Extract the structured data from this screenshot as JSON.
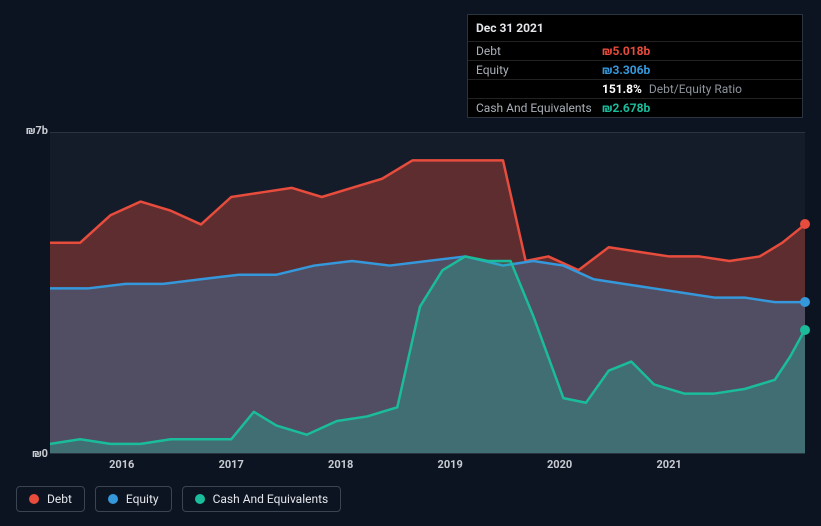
{
  "tooltip": {
    "date": "Dec 31 2021",
    "rows": [
      {
        "label": "Debt",
        "value": "₪5.018b",
        "color": "#e74c3c"
      },
      {
        "label": "Equity",
        "value": "₪3.306b",
        "color": "#3498db"
      }
    ],
    "ratio": {
      "value": "151.8%",
      "label": " Debt/Equity Ratio",
      "color": "#ffffff"
    },
    "cash": {
      "label": "Cash And Equivalents",
      "value": "₪2.678b",
      "color": "#1abc9c"
    }
  },
  "chart": {
    "type": "area",
    "background_color": "#151c29",
    "grid_color": "#2a3340",
    "y_axis": {
      "min": 0,
      "max": 7,
      "top_label": "₪7b",
      "bottom_label": "₪0",
      "label_color": "#c8ccd2",
      "label_fontsize": 11
    },
    "x_axis": {
      "ticks": [
        {
          "pos": 0.095,
          "label": "2016"
        },
        {
          "pos": 0.24,
          "label": "2017"
        },
        {
          "pos": 0.385,
          "label": "2018"
        },
        {
          "pos": 0.53,
          "label": "2019"
        },
        {
          "pos": 0.675,
          "label": "2020"
        },
        {
          "pos": 0.82,
          "label": "2021"
        }
      ],
      "label_color": "#c8ccd2",
      "label_fontsize": 11
    },
    "series": [
      {
        "id": "debt",
        "label": "Debt",
        "color": "#e74c3c",
        "fill_opacity": 0.35,
        "line_width": 2.5,
        "data": [
          [
            0.0,
            4.6
          ],
          [
            0.04,
            4.6
          ],
          [
            0.08,
            5.2
          ],
          [
            0.12,
            5.5
          ],
          [
            0.16,
            5.3
          ],
          [
            0.2,
            5.0
          ],
          [
            0.24,
            5.6
          ],
          [
            0.28,
            5.7
          ],
          [
            0.32,
            5.8
          ],
          [
            0.36,
            5.6
          ],
          [
            0.4,
            5.8
          ],
          [
            0.44,
            6.0
          ],
          [
            0.48,
            6.4
          ],
          [
            0.52,
            6.4
          ],
          [
            0.56,
            6.4
          ],
          [
            0.6,
            6.4
          ],
          [
            0.63,
            4.2
          ],
          [
            0.66,
            4.3
          ],
          [
            0.7,
            4.0
          ],
          [
            0.74,
            4.5
          ],
          [
            0.78,
            4.4
          ],
          [
            0.82,
            4.3
          ],
          [
            0.86,
            4.3
          ],
          [
            0.9,
            4.2
          ],
          [
            0.94,
            4.3
          ],
          [
            0.97,
            4.6
          ],
          [
            1.0,
            5.0
          ]
        ]
      },
      {
        "id": "equity",
        "label": "Equity",
        "color": "#3498db",
        "fill_opacity": 0.3,
        "line_width": 2.5,
        "data": [
          [
            0.0,
            3.6
          ],
          [
            0.05,
            3.6
          ],
          [
            0.1,
            3.7
          ],
          [
            0.15,
            3.7
          ],
          [
            0.2,
            3.8
          ],
          [
            0.25,
            3.9
          ],
          [
            0.3,
            3.9
          ],
          [
            0.35,
            4.1
          ],
          [
            0.4,
            4.2
          ],
          [
            0.45,
            4.1
          ],
          [
            0.5,
            4.2
          ],
          [
            0.55,
            4.3
          ],
          [
            0.6,
            4.1
          ],
          [
            0.64,
            4.2
          ],
          [
            0.68,
            4.1
          ],
          [
            0.72,
            3.8
          ],
          [
            0.76,
            3.7
          ],
          [
            0.8,
            3.6
          ],
          [
            0.84,
            3.5
          ],
          [
            0.88,
            3.4
          ],
          [
            0.92,
            3.4
          ],
          [
            0.96,
            3.3
          ],
          [
            1.0,
            3.3
          ]
        ]
      },
      {
        "id": "cash",
        "label": "Cash And Equivalents",
        "color": "#1abc9c",
        "fill_opacity": 0.3,
        "line_width": 2.5,
        "data": [
          [
            0.0,
            0.2
          ],
          [
            0.04,
            0.3
          ],
          [
            0.08,
            0.2
          ],
          [
            0.12,
            0.2
          ],
          [
            0.16,
            0.3
          ],
          [
            0.2,
            0.3
          ],
          [
            0.24,
            0.3
          ],
          [
            0.27,
            0.9
          ],
          [
            0.3,
            0.6
          ],
          [
            0.34,
            0.4
          ],
          [
            0.38,
            0.7
          ],
          [
            0.42,
            0.8
          ],
          [
            0.46,
            1.0
          ],
          [
            0.49,
            3.2
          ],
          [
            0.52,
            4.0
          ],
          [
            0.55,
            4.3
          ],
          [
            0.58,
            4.2
          ],
          [
            0.61,
            4.2
          ],
          [
            0.64,
            3.0
          ],
          [
            0.68,
            1.2
          ],
          [
            0.71,
            1.1
          ],
          [
            0.74,
            1.8
          ],
          [
            0.77,
            2.0
          ],
          [
            0.8,
            1.5
          ],
          [
            0.84,
            1.3
          ],
          [
            0.88,
            1.3
          ],
          [
            0.92,
            1.4
          ],
          [
            0.96,
            1.6
          ],
          [
            0.98,
            2.1
          ],
          [
            1.0,
            2.7
          ]
        ]
      }
    ],
    "legend": {
      "border_color": "#3a4452",
      "text_color": "#e4e6eb",
      "fontsize": 12
    }
  }
}
